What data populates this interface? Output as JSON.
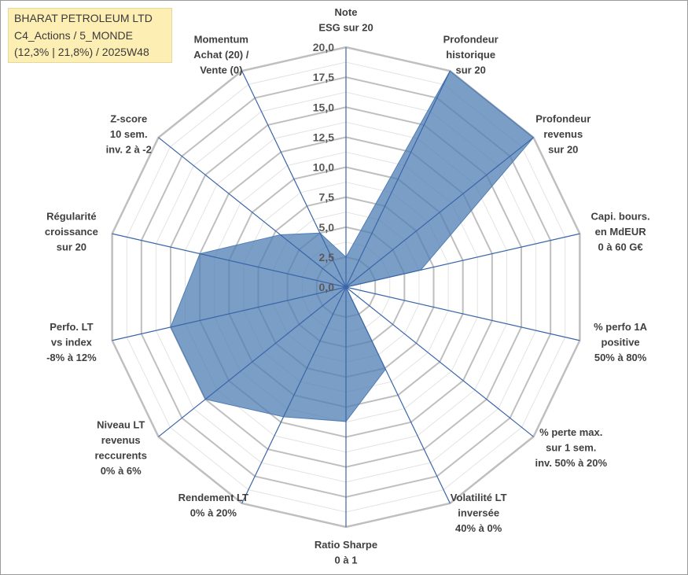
{
  "header": {
    "line1": "BHARAT PETROLEUM LTD",
    "line2": "C4_Actions / 5_MONDE",
    "line3": "(12,3% | 21,8%) / 2025W48"
  },
  "chart_data": {
    "type": "radar",
    "title": "BHARAT PETROLEUM LTD",
    "rmin": 0,
    "rmax": 20,
    "ticks": [
      "0,0",
      "2,5",
      "5,0",
      "7,5",
      "10,0",
      "12,5",
      "15,0",
      "17,5",
      "20,0"
    ],
    "fill_color": "#4f7db4",
    "line_color": "#3a66a8",
    "grid_color": "#bfbfbf",
    "axes": [
      {
        "label": [
          "Note",
          "ESG sur 20"
        ],
        "value": 2.5
      },
      {
        "label": [
          "Profondeur",
          "historique",
          "sur 20"
        ],
        "value": 20
      },
      {
        "label": [
          "Profondeur",
          "revenus",
          "sur 20"
        ],
        "value": 20
      },
      {
        "label": [
          "Capi. bours.",
          "en MdEUR",
          "0 à 60 G€"
        ],
        "value": 6.4
      },
      {
        "label": [
          "% perfo 1A",
          "positive",
          "50% à 80%"
        ],
        "value": 0
      },
      {
        "label": [
          "% perte max.",
          "sur 1 sem.",
          "inv. 50% à 20%"
        ],
        "value": 0
      },
      {
        "label": [
          "Volatilité LT",
          "inversée",
          "40% à 0%"
        ],
        "value": 7.6
      },
      {
        "label": [
          "Ratio Sharpe",
          "0 à 1"
        ],
        "value": 11.2
      },
      {
        "label": [
          "Rendement LT",
          "0% à 20%"
        ],
        "value": 12.0
      },
      {
        "label": [
          "Niveau LT",
          "revenus",
          "reccurents",
          "0% à 6%"
        ],
        "value": 15.0
      },
      {
        "label": [
          "Perfo. LT",
          "vs index",
          "-8% à 12%"
        ],
        "value": 15.0
      },
      {
        "label": [
          "Régularité",
          "croissance",
          "sur 20"
        ],
        "value": 12.5
      },
      {
        "label": [
          "Z-score",
          "10 sem.",
          "inv. 2 à -2"
        ],
        "value": 7.0
      },
      {
        "label": [
          "Momentum",
          "Achat (20) /",
          "Vente (0)"
        ],
        "value": 5.0
      }
    ]
  }
}
